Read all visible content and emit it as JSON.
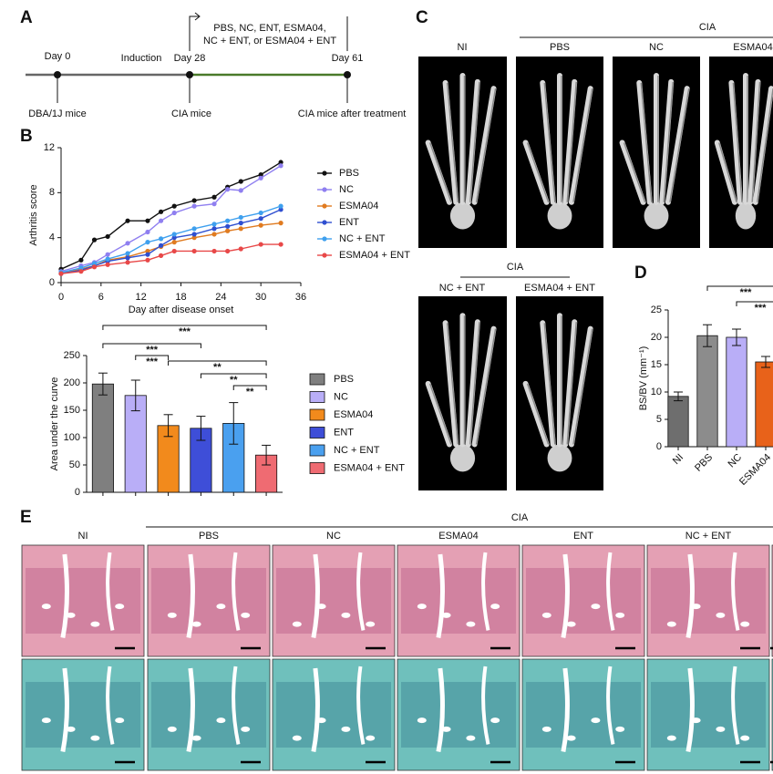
{
  "panel_labels": [
    "A",
    "B",
    "C",
    "D",
    "E"
  ],
  "timeline": {
    "days": [
      "Day 0",
      "Day 28",
      "Day 61"
    ],
    "phase": "Induction",
    "groups": [
      "DBA/1J mice",
      "CIA mice",
      "CIA mice after treatment"
    ],
    "treatment": [
      "PBS, NC, ENT, ESMA04,",
      "NC + ENT, or ESMA04 + ENT"
    ]
  },
  "ct_images": {
    "group_header": "CIA",
    "row1": [
      "NI",
      "PBS",
      "NC",
      "ESMA04"
    ],
    "row2_header": "CIA",
    "row2": [
      "NC + ENT",
      "ESMA04 + ENT"
    ]
  },
  "histology": {
    "group_header": "CIA",
    "columns": [
      "NI",
      "PBS",
      "NC",
      "ESMA04",
      "ENT",
      "NC + ENT"
    ]
  },
  "chart_data": [
    {
      "type": "line",
      "xlabel": "Day after disease onset",
      "ylabel": "Arthritis score",
      "x": [
        0,
        3,
        5,
        7,
        10,
        13,
        15,
        17,
        20,
        23,
        25,
        27,
        30,
        33
      ],
      "xlim": [
        0,
        36
      ],
      "xticks": [
        0,
        6,
        12,
        18,
        24,
        30,
        36
      ],
      "ylim": [
        0,
        12
      ],
      "yticks": [
        0,
        4,
        8,
        12
      ],
      "legend": "right",
      "series": [
        {
          "name": "PBS",
          "color": "#111111",
          "values": [
            1.2,
            2.0,
            3.8,
            4.1,
            5.5,
            5.5,
            6.3,
            6.8,
            7.3,
            7.6,
            8.5,
            9.0,
            9.6,
            10.7
          ]
        },
        {
          "name": "NC",
          "color": "#8f7ff0",
          "values": [
            1.0,
            1.5,
            1.8,
            2.5,
            3.5,
            4.5,
            5.5,
            6.2,
            6.8,
            7.0,
            8.3,
            8.2,
            9.3,
            10.4
          ]
        },
        {
          "name": "ESMA04",
          "color": "#e07b20",
          "values": [
            0.8,
            1.2,
            1.5,
            2.0,
            2.3,
            2.8,
            3.2,
            3.6,
            4.0,
            4.3,
            4.6,
            4.8,
            5.1,
            5.3
          ]
        },
        {
          "name": "ENT",
          "color": "#2f4fd0",
          "values": [
            0.8,
            1.1,
            1.5,
            1.9,
            2.2,
            2.5,
            3.3,
            4.0,
            4.3,
            4.8,
            5.0,
            5.3,
            5.7,
            6.5
          ]
        },
        {
          "name": "NC + ENT",
          "color": "#3fa0ee",
          "values": [
            0.9,
            1.3,
            1.7,
            2.1,
            2.6,
            3.6,
            3.9,
            4.3,
            4.8,
            5.2,
            5.5,
            5.8,
            6.2,
            6.8
          ]
        },
        {
          "name": "ESMA04 + ENT",
          "color": "#e84848",
          "values": [
            0.8,
            1.0,
            1.4,
            1.6,
            1.8,
            2.0,
            2.4,
            2.8,
            2.8,
            2.8,
            2.8,
            3.0,
            3.4,
            3.4
          ]
        }
      ]
    },
    {
      "type": "bar",
      "ylabel": "Area under the curve",
      "legend": "right",
      "categories": [
        "PBS",
        "NC",
        "ESMA04",
        "ENT",
        "NC + ENT",
        "ESMA04 + ENT"
      ],
      "colors": [
        "#7f7f7f",
        "#b9aef7",
        "#f28a1c",
        "#3e4ed8",
        "#4aa0ef",
        "#ef6b72"
      ],
      "values": [
        198,
        177,
        122,
        117,
        126,
        68
      ],
      "errors": [
        20,
        28,
        20,
        22,
        38,
        18
      ],
      "ylim": [
        0,
        250
      ],
      "yticks": [
        0,
        50,
        100,
        150,
        200,
        250
      ],
      "annotations": [
        {
          "text": "***"
        },
        {
          "text": "***"
        },
        {
          "text": "***"
        },
        {
          "text": "**"
        },
        {
          "text": "**"
        },
        {
          "text": "**"
        }
      ]
    },
    {
      "type": "bar",
      "ylabel": "BS/BV (mm⁻¹)",
      "categories": [
        "NI",
        "PBS",
        "NC",
        "ESMA04"
      ],
      "colors": [
        "#6e6e6e",
        "#8c8c8c",
        "#b9aef7",
        "#e8621a"
      ],
      "values": [
        9.2,
        20.3,
        20.0,
        15.5
      ],
      "errors": [
        0.8,
        2.0,
        1.5,
        1.0
      ],
      "ylim": [
        0,
        25
      ],
      "yticks": [
        0,
        5,
        10,
        15,
        20,
        25
      ],
      "annotations": [
        {
          "text": "***"
        },
        {
          "text": "***"
        }
      ]
    }
  ]
}
